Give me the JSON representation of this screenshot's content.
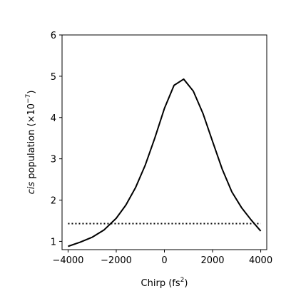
{
  "chart_data": {
    "type": "line",
    "title": "",
    "xlabel_text": "Chirp (fs",
    "xlabel_sup": "2",
    "xlabel_close": ")",
    "ylabel_italic": "cis",
    "ylabel_rest": " population (×10",
    "ylabel_sup": "−7",
    "ylabel_close": ")",
    "xlim": [
      -4250,
      4250
    ],
    "ylim": [
      0.8,
      6
    ],
    "xticks": [
      -4000,
      -2000,
      0,
      2000,
      4000
    ],
    "xtick_labels": [
      "−4000",
      "−2000",
      "0",
      "2000",
      "4000"
    ],
    "yticks": [
      1,
      2,
      3,
      4,
      5,
      6
    ],
    "ytick_labels": [
      "1",
      "2",
      "3",
      "4",
      "5",
      "6"
    ],
    "grid": false,
    "series": [
      {
        "style": "solid",
        "color": "#000000",
        "x": [
          -4000,
          -3500,
          -3000,
          -2500,
          -2000,
          -1600,
          -1200,
          -800,
          -400,
          0,
          400,
          800,
          1200,
          1600,
          2000,
          2400,
          2800,
          3200,
          3600,
          4000
        ],
        "y": [
          0.88,
          0.98,
          1.1,
          1.28,
          1.56,
          1.88,
          2.3,
          2.84,
          3.5,
          4.22,
          4.78,
          4.93,
          4.64,
          4.1,
          3.42,
          2.75,
          2.2,
          1.82,
          1.52,
          1.25
        ]
      },
      {
        "style": "dotted",
        "color": "#000000",
        "x": [
          -4000,
          4000
        ],
        "y": [
          1.43,
          1.43
        ]
      }
    ]
  }
}
